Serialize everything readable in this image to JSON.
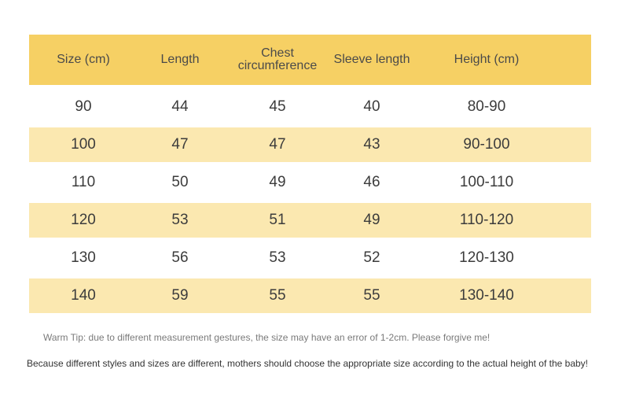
{
  "table": {
    "headers": {
      "size": "Size (cm)",
      "length": "Length",
      "chest_line1": "Chest",
      "chest_line2": "circumference",
      "sleeve": "Sleeve length",
      "height": "Height (cm)"
    },
    "rows": [
      {
        "size": "90",
        "length": "44",
        "chest": "45",
        "sleeve": "40",
        "height": "80-90"
      },
      {
        "size": "100",
        "length": "47",
        "chest": "47",
        "sleeve": "43",
        "height": "90-100"
      },
      {
        "size": "110",
        "length": "50",
        "chest": "49",
        "sleeve": "46",
        "height": "100-110"
      },
      {
        "size": "120",
        "length": "53",
        "chest": "51",
        "sleeve": "49",
        "height": "110-120"
      },
      {
        "size": "130",
        "length": "56",
        "chest": "53",
        "sleeve": "52",
        "height": "120-130"
      },
      {
        "size": "140",
        "length": "59",
        "chest": "55",
        "sleeve": "55",
        "height": "130-140"
      }
    ]
  },
  "notes": {
    "tip": "Warm Tip: due to different measurement gestures, the size may have an error of 1-2cm. Please forgive me!",
    "advice": "Because different styles and sizes are different, mothers should choose the appropriate size according to the actual height of the baby!"
  },
  "colors": {
    "header_bg": "#f6d064",
    "shaded_row_bg": "#fbe8b0"
  }
}
